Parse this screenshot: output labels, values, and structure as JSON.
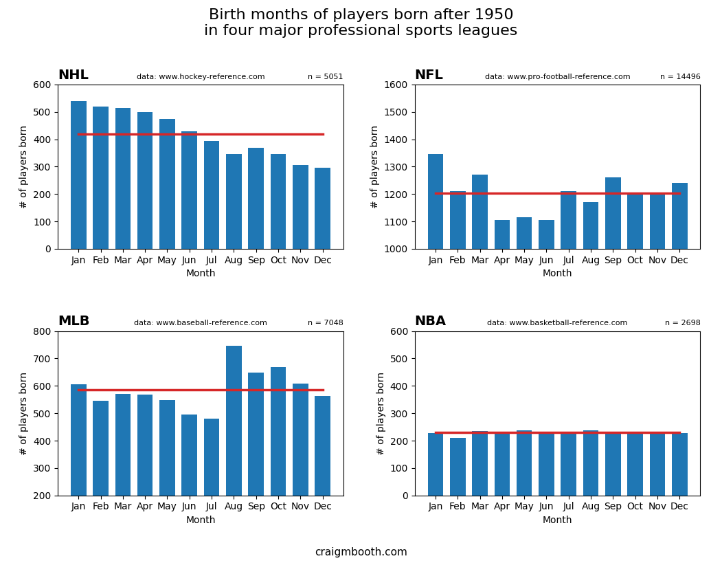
{
  "title": "Birth months of players born after 1950\nin four major professional sports leagues",
  "annotations": [
    "craigmbooth.com"
  ],
  "chart_data": [
    {
      "type": "bar",
      "title": "NHL",
      "annotations": [
        "data: www.hockey-reference.com",
        "n = 5051"
      ],
      "xlabel": "Month",
      "ylabel": "# of players born",
      "categories": [
        "Jan",
        "Feb",
        "Mar",
        "Apr",
        "May",
        "Jun",
        "Jul",
        "Aug",
        "Sep",
        "Oct",
        "Nov",
        "Dec"
      ],
      "series": [
        {
          "type": "bar",
          "color": "#1f77b4",
          "values": [
            540,
            520,
            515,
            500,
            475,
            430,
            395,
            345,
            370,
            345,
            305,
            295
          ]
        },
        {
          "type": "line",
          "color": "#d62728",
          "values": [
            419.5833333333333,
            419.5833333333333,
            419.5833333333333,
            419.5833333333333,
            419.5833333333333,
            419.5833333333333,
            419.5833333333333,
            419.5833333333333,
            419.5833333333333,
            419.5833333333333,
            419.5833333333333,
            419.5833333333333
          ]
        }
      ],
      "ylim": [
        0,
        600
      ],
      "yticks": [
        0,
        100,
        200,
        300,
        400,
        500,
        600
      ],
      "grid": false
    },
    {
      "type": "bar",
      "title": "NFL",
      "annotations": [
        "data: www.pro-football-reference.com",
        "n = 14496"
      ],
      "xlabel": "Month",
      "ylabel": "# of players born",
      "categories": [
        "Jan",
        "Feb",
        "Mar",
        "Apr",
        "May",
        "Jun",
        "Jul",
        "Aug",
        "Sep",
        "Oct",
        "Nov",
        "Dec"
      ],
      "series": [
        {
          "type": "bar",
          "color": "#1f77b4",
          "values": [
            1345,
            1210,
            1270,
            1105,
            1115,
            1105,
            1210,
            1170,
            1260,
            1200,
            1200,
            1240
          ]
        },
        {
          "type": "line",
          "color": "#d62728",
          "values": [
            1202.5,
            1202.5,
            1202.5,
            1202.5,
            1202.5,
            1202.5,
            1202.5,
            1202.5,
            1202.5,
            1202.5,
            1202.5,
            1202.5
          ]
        }
      ],
      "ylim": [
        1000,
        1600
      ],
      "yticks": [
        1000,
        1100,
        1200,
        1300,
        1400,
        1500,
        1600
      ],
      "grid": false
    },
    {
      "type": "bar",
      "title": "MLB",
      "annotations": [
        "data: www.baseball-reference.com",
        "n = 7048"
      ],
      "xlabel": "Month",
      "ylabel": "# of players born",
      "categories": [
        "Jan",
        "Feb",
        "Mar",
        "Apr",
        "May",
        "Jun",
        "Jul",
        "Aug",
        "Sep",
        "Oct",
        "Nov",
        "Dec"
      ],
      "series": [
        {
          "type": "bar",
          "color": "#1f77b4",
          "values": [
            605,
            545,
            570,
            568,
            548,
            495,
            480,
            745,
            648,
            668,
            608,
            562
          ]
        },
        {
          "type": "line",
          "color": "#d62728",
          "values": [
            586.8333333333334,
            586.8333333333334,
            586.8333333333334,
            586.8333333333334,
            586.8333333333334,
            586.8333333333334,
            586.8333333333334,
            586.8333333333334,
            586.8333333333334,
            586.8333333333334,
            586.8333333333334,
            586.8333333333334
          ]
        }
      ],
      "ylim": [
        200,
        800
      ],
      "yticks": [
        200,
        300,
        400,
        500,
        600,
        700,
        800
      ],
      "grid": false
    },
    {
      "type": "bar",
      "title": "NBA",
      "annotations": [
        "data: www.basketball-reference.com",
        "n = 2698"
      ],
      "xlabel": "Month",
      "ylabel": "# of players born",
      "categories": [
        "Jan",
        "Feb",
        "Mar",
        "Apr",
        "May",
        "Jun",
        "Jul",
        "Aug",
        "Sep",
        "Oct",
        "Nov",
        "Dec"
      ],
      "series": [
        {
          "type": "bar",
          "color": "#1f77b4",
          "values": [
            228,
            210,
            235,
            228,
            238,
            225,
            228,
            238,
            230,
            230,
            230,
            228
          ]
        },
        {
          "type": "line",
          "color": "#d62728",
          "values": [
            229,
            229,
            229,
            229,
            229,
            229,
            229,
            229,
            229,
            229,
            229,
            229
          ]
        }
      ],
      "ylim": [
        0,
        600
      ],
      "yticks": [
        0,
        100,
        200,
        300,
        400,
        500,
        600
      ],
      "grid": false
    }
  ]
}
